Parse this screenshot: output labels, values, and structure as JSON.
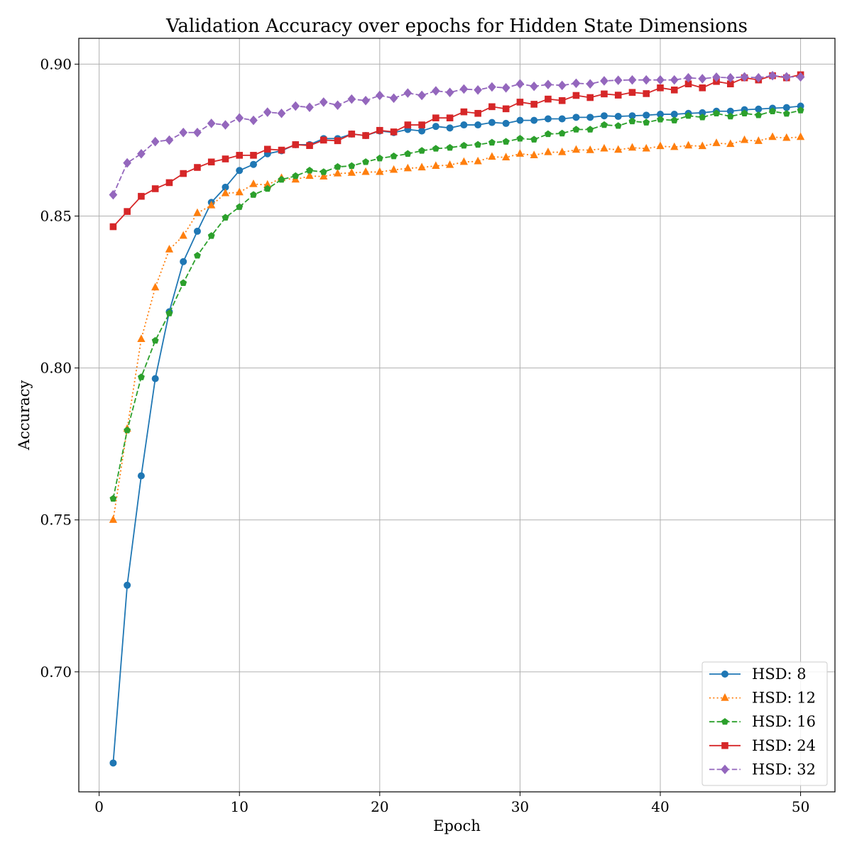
{
  "chart_data": {
    "type": "line",
    "title": "Validation Accuracy over epochs for Hidden State Dimensions",
    "xlabel": "Epoch",
    "ylabel": "Accuracy",
    "xlim": [
      -1.45,
      52.45
    ],
    "ylim": [
      0.6605,
      0.9085
    ],
    "xticks": [
      0,
      10,
      20,
      30,
      40,
      50
    ],
    "xtick_labels": [
      "0",
      "10",
      "20",
      "30",
      "40",
      "50"
    ],
    "yticks": [
      0.7,
      0.75,
      0.8,
      0.85,
      0.9
    ],
    "ytick_labels": [
      "0.70",
      "0.75",
      "0.80",
      "0.85",
      "0.90"
    ],
    "grid": true,
    "legend_position": "lower-right",
    "x": [
      1,
      2,
      3,
      4,
      5,
      6,
      7,
      8,
      9,
      10,
      11,
      12,
      13,
      14,
      15,
      16,
      17,
      18,
      19,
      20,
      21,
      22,
      23,
      24,
      25,
      26,
      27,
      28,
      29,
      30,
      31,
      32,
      33,
      34,
      35,
      36,
      37,
      38,
      39,
      40,
      41,
      42,
      43,
      44,
      45,
      46,
      47,
      48,
      49,
      50
    ],
    "series": [
      {
        "name": "HSD: 8",
        "color": "#1f77b4",
        "linestyle": "solid",
        "marker": "circle",
        "values": [
          0.67,
          0.7285,
          0.7645,
          0.7965,
          0.8185,
          0.835,
          0.845,
          0.8545,
          0.8595,
          0.865,
          0.867,
          0.8705,
          0.8715,
          0.8735,
          0.8735,
          0.8755,
          0.8755,
          0.877,
          0.8765,
          0.878,
          0.8775,
          0.8785,
          0.878,
          0.8795,
          0.879,
          0.88,
          0.88,
          0.8808,
          0.8805,
          0.8815,
          0.8815,
          0.882,
          0.882,
          0.8825,
          0.8825,
          0.883,
          0.8828,
          0.883,
          0.8832,
          0.8835,
          0.8835,
          0.8838,
          0.884,
          0.8845,
          0.8845,
          0.885,
          0.8852,
          0.8855,
          0.8857,
          0.8862
        ]
      },
      {
        "name": "HSD: 12",
        "color": "#ff7f0e",
        "linestyle": "dotted",
        "marker": "triangle",
        "values": [
          0.75,
          0.78,
          0.8095,
          0.8265,
          0.839,
          0.8435,
          0.851,
          0.8535,
          0.8575,
          0.8578,
          0.8605,
          0.8603,
          0.8625,
          0.862,
          0.8632,
          0.863,
          0.864,
          0.8642,
          0.8645,
          0.8645,
          0.8652,
          0.8657,
          0.866,
          0.8665,
          0.8668,
          0.8678,
          0.868,
          0.8695,
          0.8693,
          0.8705,
          0.87,
          0.871,
          0.871,
          0.8718,
          0.8717,
          0.8722,
          0.8718,
          0.8725,
          0.8722,
          0.873,
          0.8727,
          0.8732,
          0.873,
          0.874,
          0.8737,
          0.875,
          0.8747,
          0.876,
          0.8757,
          0.876
        ]
      },
      {
        "name": "HSD: 16",
        "color": "#2ca02c",
        "linestyle": "dashed",
        "marker": "pentagon",
        "values": [
          0.757,
          0.7795,
          0.797,
          0.809,
          0.818,
          0.828,
          0.837,
          0.8435,
          0.8495,
          0.853,
          0.857,
          0.859,
          0.862,
          0.8632,
          0.865,
          0.8645,
          0.8662,
          0.8665,
          0.8678,
          0.869,
          0.8697,
          0.8705,
          0.8715,
          0.8722,
          0.8725,
          0.8732,
          0.8735,
          0.8742,
          0.8745,
          0.8755,
          0.8752,
          0.877,
          0.8772,
          0.8785,
          0.8785,
          0.88,
          0.8797,
          0.8812,
          0.8808,
          0.8818,
          0.8815,
          0.883,
          0.8825,
          0.8838,
          0.8828,
          0.8838,
          0.8832,
          0.8845,
          0.8837,
          0.8848
        ]
      },
      {
        "name": "HSD: 24",
        "color": "#d62728",
        "linestyle": "solid",
        "marker": "square",
        "values": [
          0.8465,
          0.8515,
          0.8565,
          0.859,
          0.861,
          0.864,
          0.866,
          0.8678,
          0.8688,
          0.87,
          0.87,
          0.872,
          0.8717,
          0.8735,
          0.8732,
          0.875,
          0.8748,
          0.877,
          0.8765,
          0.8782,
          0.8777,
          0.88,
          0.88,
          0.8823,
          0.8823,
          0.8843,
          0.8838,
          0.886,
          0.8853,
          0.8875,
          0.8868,
          0.8885,
          0.888,
          0.8897,
          0.889,
          0.8902,
          0.8898,
          0.8907,
          0.8903,
          0.8922,
          0.8915,
          0.8935,
          0.8922,
          0.8943,
          0.8935,
          0.8955,
          0.8948,
          0.8962,
          0.8955,
          0.8965
        ]
      },
      {
        "name": "HSD: 32",
        "color": "#9467bd",
        "linestyle": "dashed",
        "marker": "diamond",
        "values": [
          0.857,
          0.8675,
          0.8705,
          0.8745,
          0.875,
          0.8775,
          0.8775,
          0.8805,
          0.88,
          0.8823,
          0.8815,
          0.8842,
          0.8838,
          0.8862,
          0.8858,
          0.8875,
          0.8865,
          0.8885,
          0.888,
          0.8897,
          0.8888,
          0.8905,
          0.8897,
          0.8912,
          0.8907,
          0.8918,
          0.8915,
          0.8925,
          0.8922,
          0.8935,
          0.8927,
          0.8933,
          0.893,
          0.8937,
          0.8935,
          0.8945,
          0.8947,
          0.8948,
          0.8948,
          0.8948,
          0.8948,
          0.8955,
          0.8952,
          0.8957,
          0.8955,
          0.8958,
          0.8955,
          0.8962,
          0.8958,
          0.8958
        ]
      }
    ]
  }
}
